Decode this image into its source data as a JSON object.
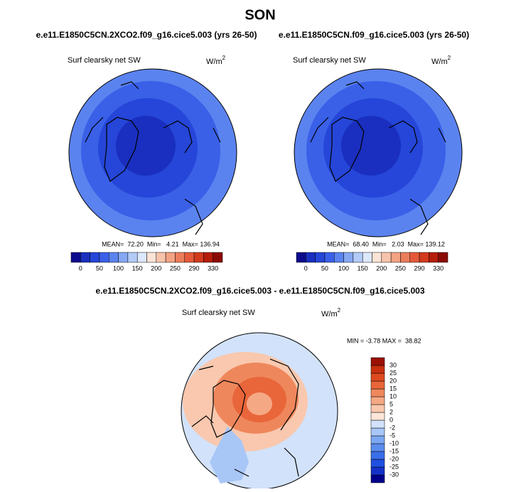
{
  "title": "SON",
  "panels": [
    {
      "case": "e.e11.E1850C5CN.2XCO2.f09_g16.cice5.003 (yrs 26-50)",
      "variable": "Surf clearsky net SW",
      "units": "W/m",
      "units_exponent": "2",
      "stats": "MEAN=  72.20  Min=   4.21  Max= 136.94"
    },
    {
      "case": "e.e11.E1850C5CN.f09_g16.cice5.003 (yrs 26-50)",
      "variable": "Surf clearsky net SW",
      "units": "W/m",
      "units_exponent": "2",
      "stats": "MEAN=  68.40  Min=   2.03  Max= 139.12"
    }
  ],
  "colorbar": {
    "colors": [
      "#0b0b8c",
      "#1a2fbf",
      "#2546d8",
      "#3a60e8",
      "#5b83ef",
      "#86a8f3",
      "#b3cbf7",
      "#dce8fb",
      "#fbe3d6",
      "#f7c3ab",
      "#f3a283",
      "#ec7d5b",
      "#e45a3a",
      "#d33a1e",
      "#b51d0b",
      "#8b0a05"
    ],
    "ticks": [
      0,
      50,
      100,
      150,
      200,
      250,
      290,
      330
    ]
  },
  "difference": {
    "case": "e.e11.E1850C5CN.2XCO2.f09_g16.cice5.003 - e.e11.E1850C5CN.f09_g16.cice5.003",
    "variable": "Surf clearsky net SW",
    "units": "W/m",
    "units_exponent": "2",
    "stats": "MIN = -3.78 MAX =  38.82",
    "colorbar": {
      "colors": [
        "#00008b",
        "#1432c8",
        "#2050e0",
        "#3a6ee8",
        "#5a8cee",
        "#7ca8f2",
        "#a8c6f6",
        "#d2e2fa",
        "#fde6d8",
        "#f9c8ae",
        "#f5a884",
        "#ef875c",
        "#e8663a",
        "#de4a20",
        "#c8300e",
        "#9a1005"
      ],
      "ticks": [
        -30,
        -25,
        -20,
        -15,
        -10,
        -5,
        -2,
        0,
        2,
        5,
        10,
        15,
        20,
        25,
        30
      ]
    }
  }
}
